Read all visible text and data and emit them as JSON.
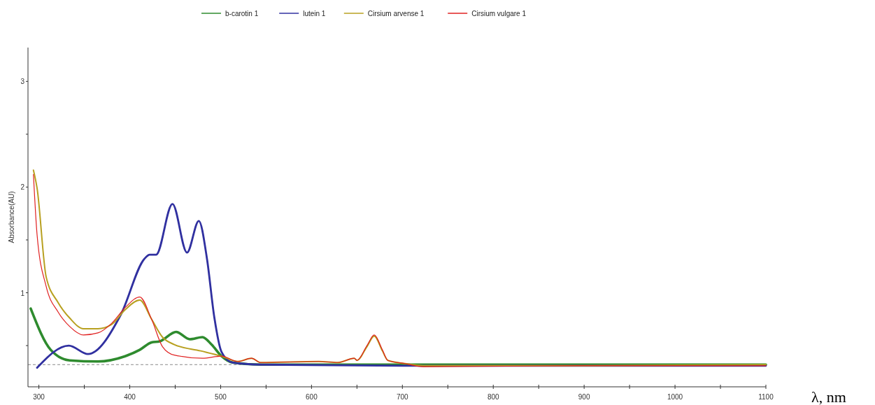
{
  "chart_data": {
    "type": "line",
    "ylabel": "Absorbance(AU)",
    "xlabel": "λ, nm",
    "xlim": [
      288,
      1100
    ],
    "ylim": [
      0.11,
      3.32
    ],
    "xticks": [
      300,
      {
        "value": 350,
        "label": null
      },
      400,
      {
        "value": 450,
        "label": null
      },
      500,
      {
        "value": 550,
        "label": null
      },
      600,
      {
        "value": 650,
        "label": null
      },
      700,
      {
        "value": 750,
        "label": null
      },
      800,
      {
        "value": 850,
        "label": null
      },
      900,
      {
        "value": 950,
        "label": null
      },
      1000,
      {
        "value": 1050,
        "label": null
      },
      1100
    ],
    "yticks": [
      {
        "value": 0.5,
        "label": null
      },
      1,
      {
        "value": 1.5,
        "label": null
      },
      2,
      {
        "value": 2.5,
        "label": null
      },
      3
    ],
    "grid": false,
    "legend": "top",
    "marker": "none",
    "line_style": "solid",
    "ref_lines": [
      {
        "axis": "y",
        "value": 0.32,
        "color": "#8a8a8a",
        "line_style": "dashed"
      }
    ],
    "series": [
      {
        "name": "b-carotin 1",
        "color": "#2e8b2e",
        "x": [
          291,
          313,
          334,
          365,
          395,
          411,
          424,
          433,
          451,
          466,
          480,
          490,
          501,
          513,
          544,
          700,
          900,
          1100
        ],
        "values": [
          0.85,
          0.46,
          0.36,
          0.35,
          0.4,
          0.46,
          0.53,
          0.54,
          0.63,
          0.56,
          0.58,
          0.51,
          0.4,
          0.34,
          0.32,
          0.32,
          0.32,
          0.32
        ]
      },
      {
        "name": "lutein 1",
        "color": "#3030a0",
        "x": [
          298,
          333,
          354,
          390,
          416,
          422,
          429,
          447,
          463,
          476,
          485,
          493,
          501,
          513,
          544,
          700,
          900,
          1100
        ],
        "values": [
          0.29,
          0.5,
          0.42,
          0.79,
          1.32,
          1.36,
          1.36,
          1.84,
          1.38,
          1.68,
          1.32,
          0.77,
          0.44,
          0.34,
          0.32,
          0.31,
          0.31,
          0.31
        ]
      },
      {
        "name": "Cirsium arvense 1",
        "color": "#b8a020",
        "x": [
          294,
          298,
          308,
          321,
          334,
          349,
          365,
          380,
          395,
          411,
          424,
          436,
          449,
          478,
          501,
          519,
          534,
          544,
          608,
          629,
          647,
          650,
          661,
          669,
          678,
          684,
          703,
          723,
          900,
          1100
        ],
        "values": [
          2.16,
          1.99,
          1.15,
          0.91,
          0.76,
          0.66,
          0.66,
          0.7,
          0.84,
          0.93,
          0.75,
          0.58,
          0.51,
          0.45,
          0.4,
          0.35,
          0.38,
          0.34,
          0.35,
          0.34,
          0.38,
          0.36,
          0.49,
          0.59,
          0.45,
          0.36,
          0.33,
          0.31,
          0.31,
          0.32
        ]
      },
      {
        "name": "Cirsium vulgare 1",
        "color": "#e02020",
        "x": [
          294,
          298,
          308,
          321,
          334,
          349,
          365,
          380,
          395,
          411,
          424,
          436,
          449,
          480,
          501,
          519,
          534,
          544,
          608,
          629,
          647,
          650,
          661,
          669,
          678,
          684,
          703,
          723,
          900,
          1100
        ],
        "values": [
          2.12,
          1.55,
          1.06,
          0.82,
          0.68,
          0.6,
          0.62,
          0.71,
          0.86,
          0.96,
          0.75,
          0.49,
          0.41,
          0.38,
          0.4,
          0.35,
          0.38,
          0.34,
          0.35,
          0.34,
          0.38,
          0.36,
          0.5,
          0.6,
          0.46,
          0.36,
          0.33,
          0.3,
          0.31,
          0.31
        ]
      }
    ]
  }
}
